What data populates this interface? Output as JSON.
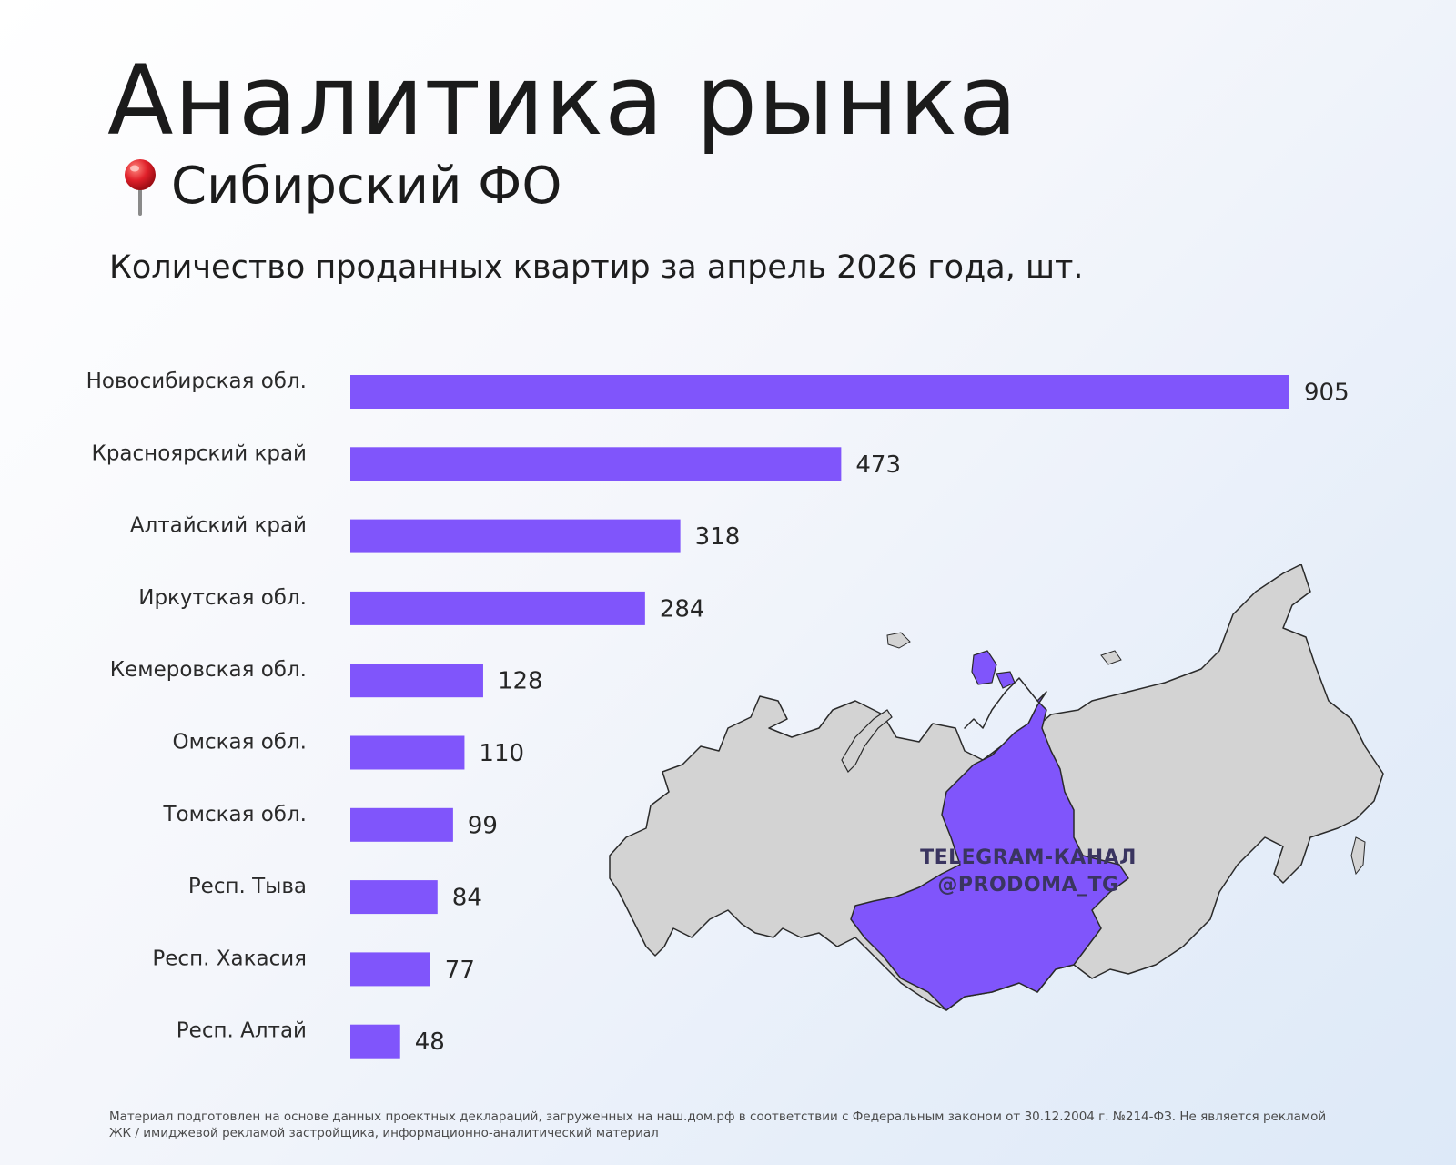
{
  "header": {
    "title": "Аналитика рынка",
    "region": "Сибирский ФО",
    "pin_icon": "pushpin-icon",
    "subtitle": "Количество проданных квартир за апрель 2026 года, шт."
  },
  "colors": {
    "bar": "#8055fb",
    "map_highlight": "#8055fb",
    "map_base": "#d3d3d3"
  },
  "chart_data": {
    "type": "bar",
    "orientation": "horizontal",
    "title": "Количество проданных квартир за апрель 2026 года, шт.",
    "categories": [
      "Новосибирская обл.",
      "Красноярский край",
      "Алтайский край",
      "Иркутская обл.",
      "Кемеровская обл.",
      "Омская обл.",
      "Томская обл.",
      "Респ. Тыва",
      "Респ. Хакасия",
      "Респ. Алтай"
    ],
    "values": [
      905,
      473,
      318,
      284,
      128,
      110,
      99,
      84,
      77,
      48
    ],
    "xlim": [
      0,
      905
    ],
    "grid": false,
    "legend": "none"
  },
  "map": {
    "watermark_line1": "TELEGRAM-КАНАЛ",
    "watermark_line2": "@PRODOMA_TG"
  },
  "footnote": "Материал подготовлен на основе данных проектных деклараций, загруженных на наш.дом.рф в соответствии с Федеральным законом от 30.12.2004 г. №214-ФЗ. Не является рекламой ЖК / имиджевой рекламой застройщика, информационно-аналитический материал"
}
